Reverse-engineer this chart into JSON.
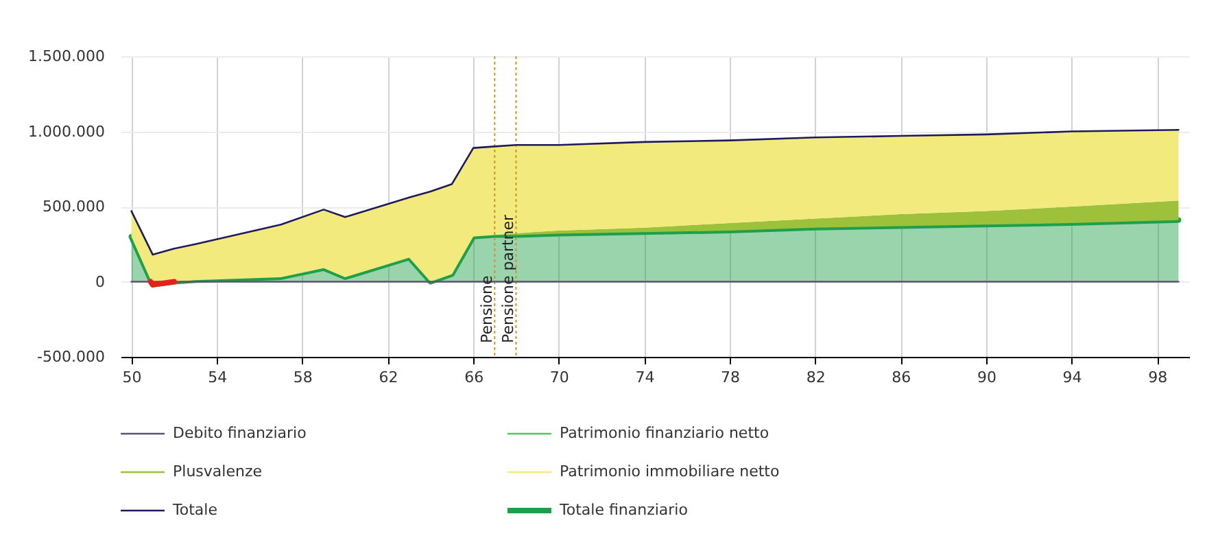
{
  "chart_data": {
    "type": "area",
    "stacked": true,
    "x": [
      50,
      51,
      52,
      53,
      57,
      59,
      60,
      63,
      64,
      65,
      66,
      67,
      68,
      70,
      74,
      78,
      82,
      86,
      90,
      94,
      99
    ],
    "xlim": [
      49.5,
      99.5
    ],
    "xticks": [
      50,
      54,
      58,
      62,
      66,
      70,
      74,
      78,
      82,
      86,
      90,
      94,
      98
    ],
    "ylim": [
      -500000,
      1500000
    ],
    "yticks": [
      {
        "value": -500000,
        "label": "-500.000"
      },
      0,
      {
        "value": 500000,
        "label": "500.000"
      },
      {
        "value": 1000000,
        "label": "1.000.000"
      },
      {
        "value": 1500000,
        "label": "1.500.000"
      }
    ],
    "grid": true,
    "legend": "bottom",
    "series": [
      {
        "name": "Debito finanziario",
        "type": "line",
        "color": "#5a5470",
        "values": [
          0,
          0,
          0,
          0,
          0,
          0,
          0,
          0,
          0,
          0,
          0,
          0,
          0,
          0,
          0,
          0,
          0,
          0,
          0,
          0,
          0
        ]
      },
      {
        "name": "Patrimonio finanziario netto",
        "type": "line",
        "color": "#5cbf60",
        "values": [
          null,
          null,
          null,
          null,
          null,
          null,
          null,
          null,
          null,
          null,
          null,
          null,
          null,
          null,
          null,
          null,
          null,
          null,
          null,
          null,
          null
        ]
      },
      {
        "name": "Totale finanziario",
        "color": "#1ea04a",
        "values": [
          300000,
          -20000,
          0,
          10000,
          30000,
          90000,
          30000,
          160000,
          0,
          50000,
          300000,
          310000,
          310000,
          320000,
          330000,
          340000,
          360000,
          370000,
          380000,
          390000,
          410000
        ]
      },
      {
        "name": "Plusvalenze",
        "color": "#9dc13b",
        "values": [
          0,
          0,
          0,
          0,
          0,
          0,
          0,
          0,
          0,
          0,
          0,
          0,
          10000,
          20000,
          30000,
          50000,
          60000,
          80000,
          90000,
          110000,
          130000
        ]
      },
      {
        "name": "Patrimonio immobiliare netto",
        "color": "#f2ea7c",
        "values": [
          170000,
          200000,
          220000,
          240000,
          350000,
          390000,
          400000,
          400000,
          600000,
          600000,
          590000,
          590000,
          590000,
          570000,
          570000,
          550000,
          540000,
          520000,
          510000,
          500000,
          470000
        ]
      },
      {
        "name": "Totale",
        "type": "line",
        "color": "#1f1a5e",
        "values": [
          470000,
          180000,
          220000,
          250000,
          380000,
          480000,
          430000,
          560000,
          600000,
          650000,
          890000,
          900000,
          910000,
          910000,
          930000,
          940000,
          960000,
          970000,
          980000,
          1000000,
          1010000
        ]
      },
      {
        "type": "line",
        "color": "#e3231b",
        "x": [
          50.9,
          51,
          52
        ],
        "values": [
          0,
          -20000,
          0
        ]
      }
    ],
    "ref_lines": [
      {
        "axis": "x",
        "value": 67,
        "label": "Pensione",
        "color": "#c8962a",
        "line_style": "dotted"
      },
      {
        "axis": "x",
        "value": 68,
        "label": "Pensione partner",
        "color": "#c8962a",
        "line_style": "dotted"
      }
    ]
  }
}
